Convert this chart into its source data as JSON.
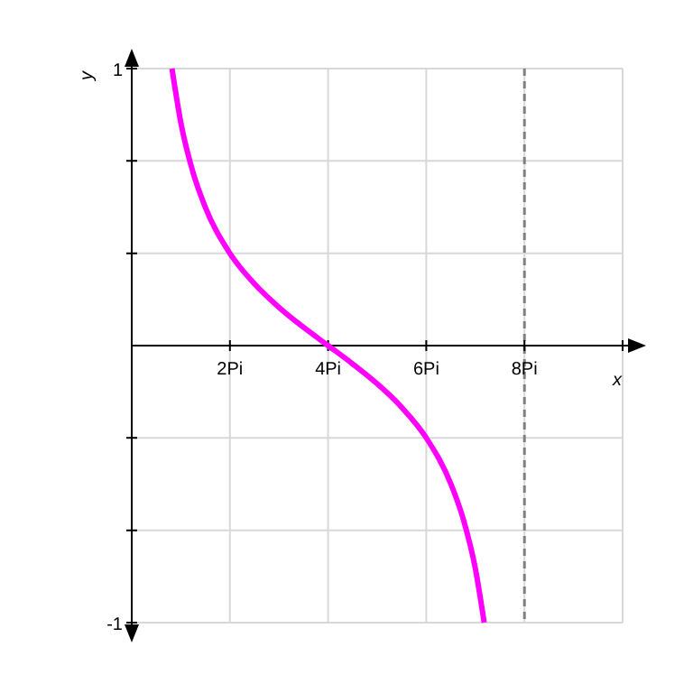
{
  "chart_data": {
    "type": "line",
    "xlabel": "x",
    "ylabel": "y",
    "series": [
      {
        "color": "#ff00ff",
        "x": [
          0.82,
          1,
          1.25,
          1.5,
          2,
          2.5,
          3,
          3.5,
          4,
          4.5,
          5,
          5.5,
          6,
          6.5,
          6.75,
          7,
          7.18
        ],
        "values": [
          1.0,
          0.805,
          0.624,
          0.499,
          0.333,
          0.223,
          0.138,
          0.066,
          0,
          -0.066,
          -0.138,
          -0.223,
          -0.333,
          -0.499,
          -0.624,
          -0.805,
          -1.0
        ]
      }
    ],
    "xlim": [
      0,
      10
    ],
    "ylim": [
      -1,
      1
    ],
    "xticks": [
      {
        "value": 2,
        "label": "2Pi"
      },
      {
        "value": 4,
        "label": "4Pi"
      },
      {
        "value": 6,
        "label": "6Pi"
      },
      {
        "value": 8,
        "label": "8Pi"
      },
      {
        "value": 10,
        "label": null
      }
    ],
    "yticks": [
      -1,
      {
        "value": -0.667,
        "label": null
      },
      {
        "value": -0.333,
        "label": null
      },
      {
        "value": 0.333,
        "label": null
      },
      {
        "value": 0.667,
        "label": null
      },
      1
    ],
    "grid": true,
    "line_style": "solid",
    "marker": "none",
    "ref_lines": [
      {
        "axis": "x",
        "value": 8,
        "label": null,
        "color": "#808080",
        "line_style": "dashed"
      }
    ]
  }
}
